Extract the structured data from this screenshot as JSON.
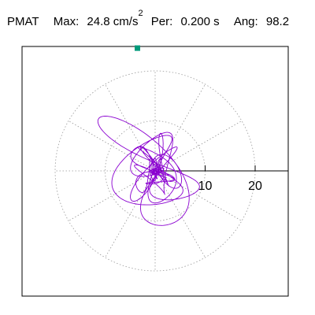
{
  "header": {
    "station": "PMAT",
    "max_label": "Max:",
    "max_value": "24.8 cm/s",
    "max_exp": "2",
    "per_label": "Per:",
    "per_value": "0.200 s",
    "ang_label": "Ang:",
    "ang_value": "98.2"
  },
  "chart_data": {
    "type": "polar-orbit",
    "rings": [
      10,
      20
    ],
    "ring_labels": [
      "10",
      "20"
    ],
    "max_value": 24.8,
    "max_unit": "cm/s2",
    "max_angle_deg": 98.2,
    "max_marker_color": "#009a7a",
    "trace_color": "#8a00d0",
    "grid_color": "#999999",
    "grid": true
  }
}
